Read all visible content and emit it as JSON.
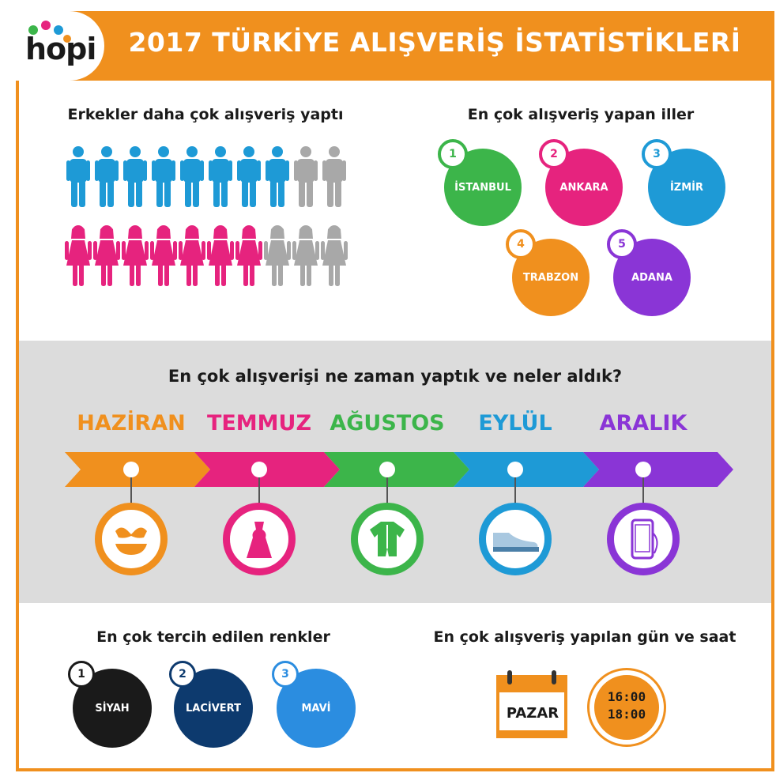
{
  "header": {
    "logo": "hopi",
    "title": "2017 TÜRKİYE ALIŞVERİŞ İSTATİSTİKLERİ"
  },
  "gender": {
    "title": "Erkekler daha çok alışveriş yaptı",
    "male_colored": 8,
    "male_total": 10,
    "female_colored": 7,
    "female_total": 10,
    "male_color": "#1e9ad6",
    "female_color": "#e6237e",
    "gray": "#a8a8a8"
  },
  "cities": {
    "title": "En çok alışveriş yapan iller",
    "items": [
      {
        "rank": "1",
        "name": "İSTANBUL",
        "color": "#3cb54a"
      },
      {
        "rank": "2",
        "name": "ANKARA",
        "color": "#e6237e"
      },
      {
        "rank": "3",
        "name": "İZMİR",
        "color": "#1e9ad6"
      },
      {
        "rank": "4",
        "name": "TRABZON",
        "color": "#f0901e"
      },
      {
        "rank": "5",
        "name": "ADANA",
        "color": "#8a35d6"
      }
    ]
  },
  "timeline": {
    "title": "En çok alışverişi ne zaman yaptık ve neler aldık?",
    "months": [
      {
        "name": "HAZİRAN",
        "color": "#f0901e",
        "icon": "bikini-icon"
      },
      {
        "name": "TEMMUZ",
        "color": "#e6237e",
        "icon": "dress-icon"
      },
      {
        "name": "AĞUSTOS",
        "color": "#3cb54a",
        "icon": "baby-onesie-icon"
      },
      {
        "name": "EYLÜL",
        "color": "#1e9ad6",
        "icon": "shoe-icon"
      },
      {
        "name": "ARALIK",
        "color": "#8a35d6",
        "icon": "smartphone-icon"
      }
    ]
  },
  "colors": {
    "title": "En çok tercih edilen renkler",
    "items": [
      {
        "rank": "1",
        "name": "SİYAH",
        "color": "#1a1a1a"
      },
      {
        "rank": "2",
        "name": "LACİVERT",
        "color": "#0d3a6e"
      },
      {
        "rank": "3",
        "name": "MAVİ",
        "color": "#2b8de0"
      }
    ]
  },
  "day_time": {
    "title": "En çok alışveriş yapılan gün ve saat",
    "day": "PAZAR",
    "time_start": "16:00",
    "time_end": "18:00"
  }
}
